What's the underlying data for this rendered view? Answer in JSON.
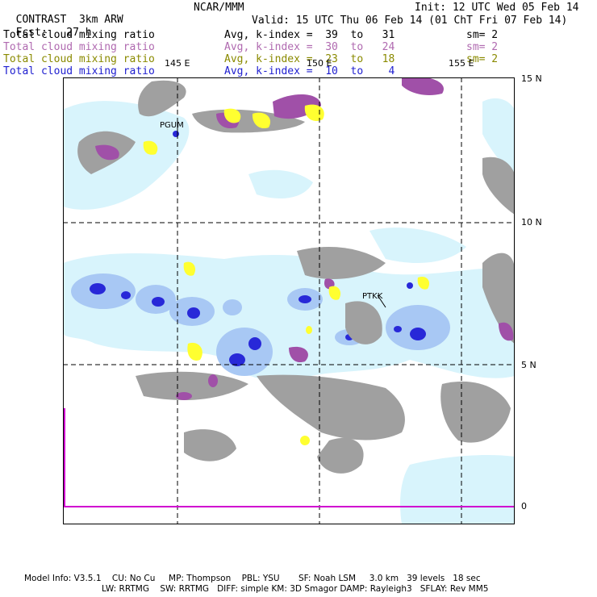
{
  "header": {
    "product": "CONTRAST",
    "model": "3km ARW",
    "org": "NCAR/MMM",
    "init": "Init: 12 UTC Wed 05 Feb 14",
    "fcst_label": "Fcst:",
    "fcst_value": "27 h",
    "valid": "Valid: 15 UTC Thu 06 Feb 14 (01 ChT Fri 07 Feb 14)"
  },
  "fields": [
    {
      "name": "Total cloud mixing ratio",
      "avg": "Avg, k-index =",
      "range": "39  to   31",
      "sm": "sm= 2",
      "color": "#000000"
    },
    {
      "name": "Total cloud mixing ratio",
      "avg": "Avg, k-index =",
      "range": "30  to   24",
      "sm": "sm= 2",
      "color": "#b06ab0"
    },
    {
      "name": "Total cloud mixing ratio",
      "avg": "Avg, k-index =",
      "range": "23  to   18",
      "sm": "sm= 2",
      "color": "#8a8a00"
    },
    {
      "name": "Total cloud mixing ratio",
      "avg": "Avg, k-index =",
      "range": "10  to    4",
      "sm": "",
      "color": "#2020d0"
    }
  ],
  "axes": {
    "lon_labels": [
      "145 E",
      "150 E",
      "155 E"
    ],
    "lat_labels": [
      "15 N",
      "10 N",
      "5 N",
      "0"
    ]
  },
  "stations": [
    "PGUM",
    "PTKK"
  ],
  "colors": {
    "gray_cloud": "#a0a0a0",
    "purple_cloud": "#a050a8",
    "yellow_cloud": "#ffff30",
    "light_blue": "#d8f4fc",
    "mid_blue": "#a8c8f4",
    "dark_blue": "#2828d8",
    "pink_line": "#d000d0"
  },
  "footer": {
    "line1": "Model Info: V3.5.1    CU: No Cu     MP: Thompson    PBL: YSU       SF: Noah LSM     3.0 km   39 levels   18 sec",
    "line2": "LW: RRTMG    SW: RRTMG   DIFF: simple KM: 3D Smagor DAMP: Rayleigh3   SFLAY: Rev MM5"
  }
}
